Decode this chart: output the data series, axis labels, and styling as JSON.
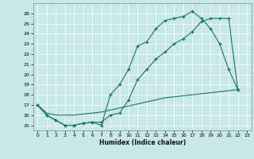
{
  "title": "",
  "xlabel": "Humidex (Indice chaleur)",
  "bg_color": "#c8e8e8",
  "grid_color": "#aad4d4",
  "line_color": "#1a7070",
  "line1_x": [
    0,
    1,
    2,
    3,
    4,
    5,
    6,
    7,
    8,
    9,
    10,
    11,
    12,
    13,
    14,
    15,
    16,
    17,
    18,
    19,
    20,
    21,
    22
  ],
  "line1_y": [
    17,
    16,
    15.5,
    15,
    15,
    15.2,
    15.3,
    15,
    18,
    19,
    20.5,
    22.8,
    23.2,
    24.5,
    25.3,
    25.5,
    25.7,
    26.2,
    25.5,
    24.5,
    23,
    20.5,
    18.5
  ],
  "line2_x": [
    0,
    1,
    2,
    3,
    4,
    5,
    6,
    7,
    8,
    9,
    10,
    11,
    12,
    13,
    14,
    15,
    16,
    17,
    18,
    19,
    20,
    21,
    22
  ],
  "line2_y": [
    17,
    16,
    15.5,
    15,
    15,
    15.2,
    15.3,
    15.3,
    16,
    16.2,
    17.5,
    19.5,
    20.5,
    21.5,
    22.2,
    23,
    23.5,
    24.2,
    25.2,
    25.5,
    25.5,
    25.5,
    18.5
  ],
  "line3_x": [
    0,
    1,
    2,
    3,
    4,
    5,
    6,
    7,
    8,
    9,
    10,
    11,
    12,
    13,
    14,
    15,
    16,
    17,
    18,
    19,
    20,
    21,
    22
  ],
  "line3_y": [
    17,
    16.2,
    16.0,
    16.0,
    16.0,
    16.1,
    16.2,
    16.3,
    16.5,
    16.7,
    16.9,
    17.1,
    17.3,
    17.5,
    17.7,
    17.8,
    17.9,
    18.0,
    18.1,
    18.2,
    18.3,
    18.4,
    18.5
  ],
  "ylim": [
    14.5,
    27
  ],
  "xlim": [
    -0.5,
    23.5
  ],
  "yticks": [
    15,
    16,
    17,
    18,
    19,
    20,
    21,
    22,
    23,
    24,
    25,
    26
  ],
  "xticks": [
    0,
    1,
    2,
    3,
    4,
    5,
    6,
    7,
    8,
    9,
    10,
    11,
    12,
    13,
    14,
    15,
    16,
    17,
    18,
    19,
    20,
    21,
    22,
    23
  ]
}
